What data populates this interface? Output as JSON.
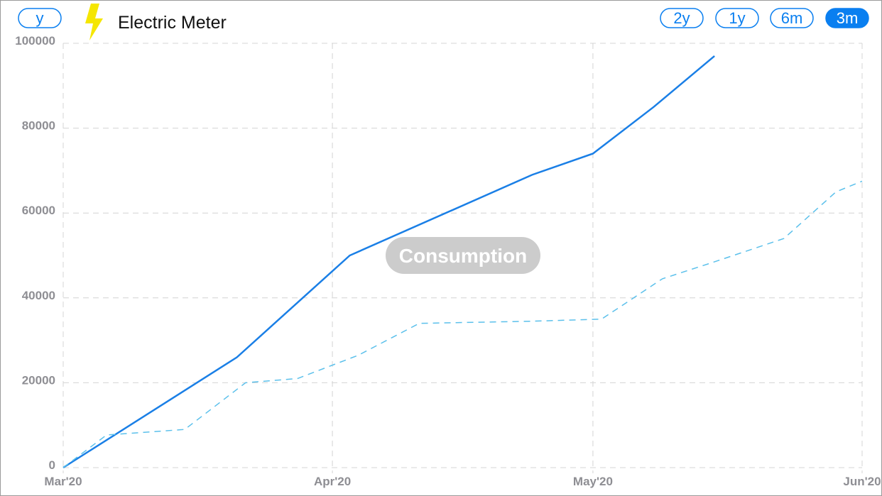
{
  "ui": {
    "axis_button": "y",
    "range_buttons": [
      {
        "label": "2y",
        "selected": false
      },
      {
        "label": "1y",
        "selected": false
      },
      {
        "label": "6m",
        "selected": false
      },
      {
        "label": "3m",
        "selected": true
      }
    ]
  },
  "chart_data": {
    "type": "line",
    "title": "Electric Meter",
    "annotation": "Consumption",
    "xlim": [
      0,
      92
    ],
    "xticks": [
      {
        "value": 0,
        "label": "Mar'20"
      },
      {
        "value": 31,
        "label": "Apr'20"
      },
      {
        "value": 61,
        "label": "May'20"
      },
      {
        "value": 92,
        "label": "Jun'20"
      }
    ],
    "ylim": [
      0,
      100000
    ],
    "yticks": [
      0,
      20000,
      40000,
      60000,
      80000,
      100000
    ],
    "grid": true,
    "series": [
      {
        "color": "#1a7fe6",
        "line_style": "solid",
        "x": [
          0,
          20,
          33,
          54,
          61,
          68,
          75
        ],
        "values": [
          0,
          26000,
          50000,
          69000,
          74000,
          85000,
          97000
        ]
      },
      {
        "color": "#5bc0eb",
        "line_style": "dashed",
        "x": [
          0,
          5,
          14,
          21,
          27,
          34,
          41,
          54,
          62,
          69,
          75,
          83,
          89,
          92
        ],
        "values": [
          0,
          7700,
          9000,
          20000,
          21000,
          26500,
          34000,
          34500,
          35000,
          44500,
          48500,
          54000,
          65000,
          67500
        ]
      }
    ]
  }
}
